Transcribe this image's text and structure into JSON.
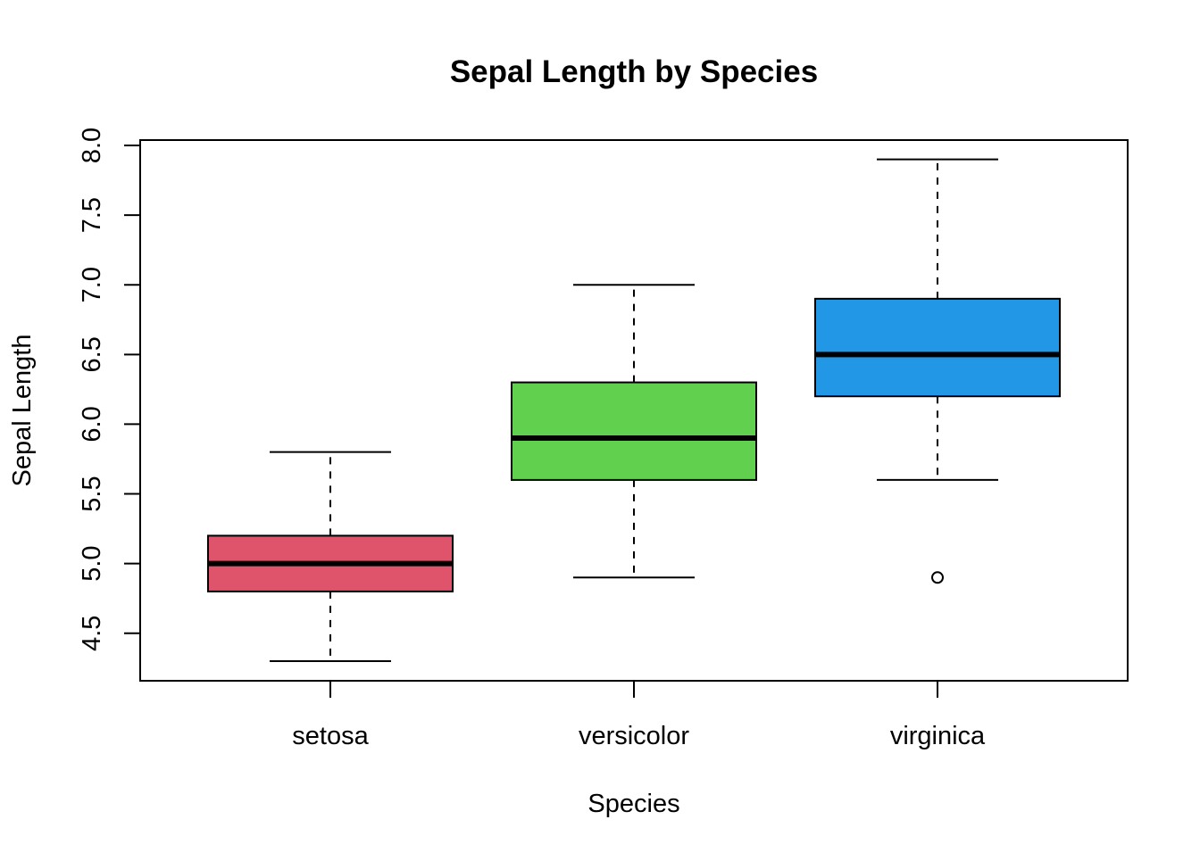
{
  "chart_data": {
    "type": "box",
    "title": "Sepal Length by Species",
    "xlabel": "Species",
    "ylabel": "Sepal Length",
    "ylim": [
      4.3,
      8.0
    ],
    "yticks": [
      "4.5",
      "5.0",
      "5.5",
      "6.0",
      "6.5",
      "7.0",
      "7.5",
      "8.0"
    ],
    "grid": false,
    "categories": [
      "setosa",
      "versicolor",
      "virginica"
    ],
    "series": [
      {
        "category": "setosa",
        "color": "#DF536B",
        "whisker_low": 4.3,
        "q1": 4.8,
        "median": 5.0,
        "q3": 5.2,
        "whisker_high": 5.8,
        "outliers": []
      },
      {
        "category": "versicolor",
        "color": "#61D04F",
        "whisker_low": 4.9,
        "q1": 5.6,
        "median": 5.9,
        "q3": 6.3,
        "whisker_high": 7.0,
        "outliers": []
      },
      {
        "category": "virginica",
        "color": "#2297E6",
        "whisker_low": 5.6,
        "q1": 6.2,
        "median": 6.5,
        "q3": 6.9,
        "whisker_high": 7.9,
        "outliers": [
          4.9
        ]
      }
    ]
  }
}
